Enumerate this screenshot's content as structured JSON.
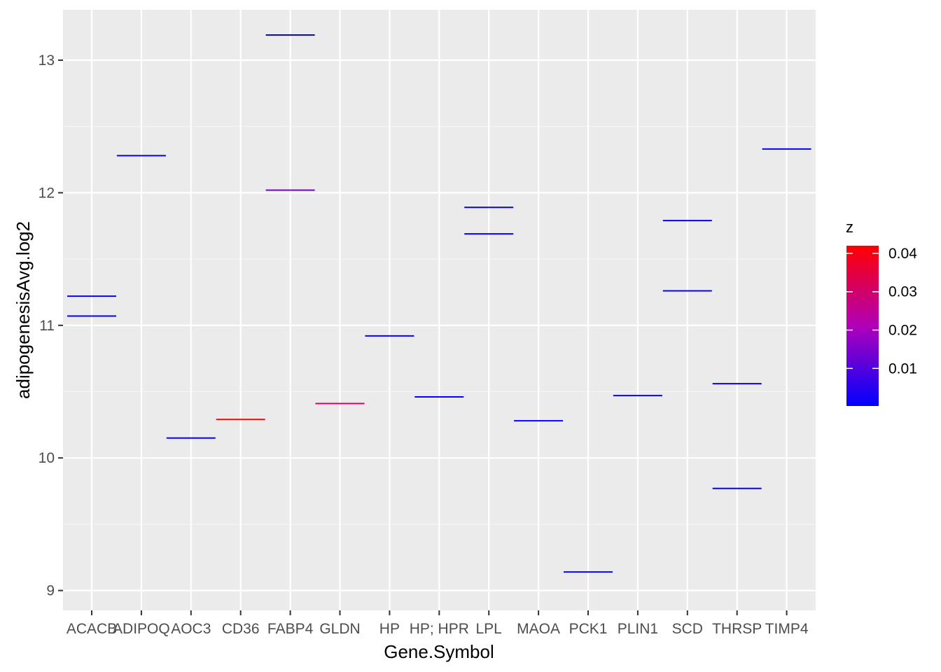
{
  "chart_data": {
    "type": "scatter",
    "mark": "crossbar-line",
    "xlabel": "Gene.Symbol",
    "ylabel": "adipogenesisAvg.log2",
    "categories": [
      "ACACB",
      "ADIPOQ",
      "AOC3",
      "CD36",
      "FABP4",
      "GLDN",
      "HP",
      "HP; HPR",
      "LPL",
      "MAOA",
      "PCK1",
      "PLIN1",
      "SCD",
      "THRSP",
      "TIMP4"
    ],
    "ylim": [
      8.85,
      13.38
    ],
    "yticks": [
      9,
      10,
      11,
      12,
      13
    ],
    "grid": true,
    "points": [
      {
        "x": "ACACB",
        "y": 11.22,
        "z": 0.001
      },
      {
        "x": "ACACB",
        "y": 11.07,
        "z": 0.001
      },
      {
        "x": "ADIPOQ",
        "y": 12.28,
        "z": 0.001
      },
      {
        "x": "AOC3",
        "y": 10.15,
        "z": 0.001
      },
      {
        "x": "CD36",
        "y": 10.29,
        "z": 0.042
      },
      {
        "x": "FABP4",
        "y": 13.19,
        "z": 0.001
      },
      {
        "x": "FABP4",
        "y": 12.02,
        "z": 0.015
      },
      {
        "x": "GLDN",
        "y": 10.41,
        "z": 0.03
      },
      {
        "x": "HP",
        "y": 10.92,
        "z": 0.001
      },
      {
        "x": "HP; HPR",
        "y": 10.46,
        "z": 0.001
      },
      {
        "x": "LPL",
        "y": 11.89,
        "z": 0.001
      },
      {
        "x": "LPL",
        "y": 11.69,
        "z": 0.001
      },
      {
        "x": "MAOA",
        "y": 10.28,
        "z": 0.001
      },
      {
        "x": "PCK1",
        "y": 9.14,
        "z": 0.001
      },
      {
        "x": "PLIN1",
        "y": 10.47,
        "z": 0.001
      },
      {
        "x": "SCD",
        "y": 11.79,
        "z": 0.001
      },
      {
        "x": "SCD",
        "y": 11.26,
        "z": 0.001
      },
      {
        "x": "THRSP",
        "y": 10.56,
        "z": 0.001
      },
      {
        "x": "THRSP",
        "y": 9.77,
        "z": 0.001
      },
      {
        "x": "TIMP4",
        "y": 12.33,
        "z": 0.001
      }
    ],
    "legend": {
      "title": "z",
      "placement": "right",
      "type": "colorbar",
      "range": [
        0.0002,
        0.042
      ],
      "ticks": [
        0.01,
        0.02,
        0.03,
        0.04
      ],
      "tick_labels": [
        "0.01",
        "0.02",
        "0.03",
        "0.04"
      ],
      "low_color": "#0000FF",
      "high_color": "#FF0000"
    },
    "colors": {
      "panel_background": "#EBEBEB",
      "grid_major": "#FFFFFF",
      "grid_minor": "#F5F5F5",
      "tick_text": "#4D4D4D"
    }
  }
}
